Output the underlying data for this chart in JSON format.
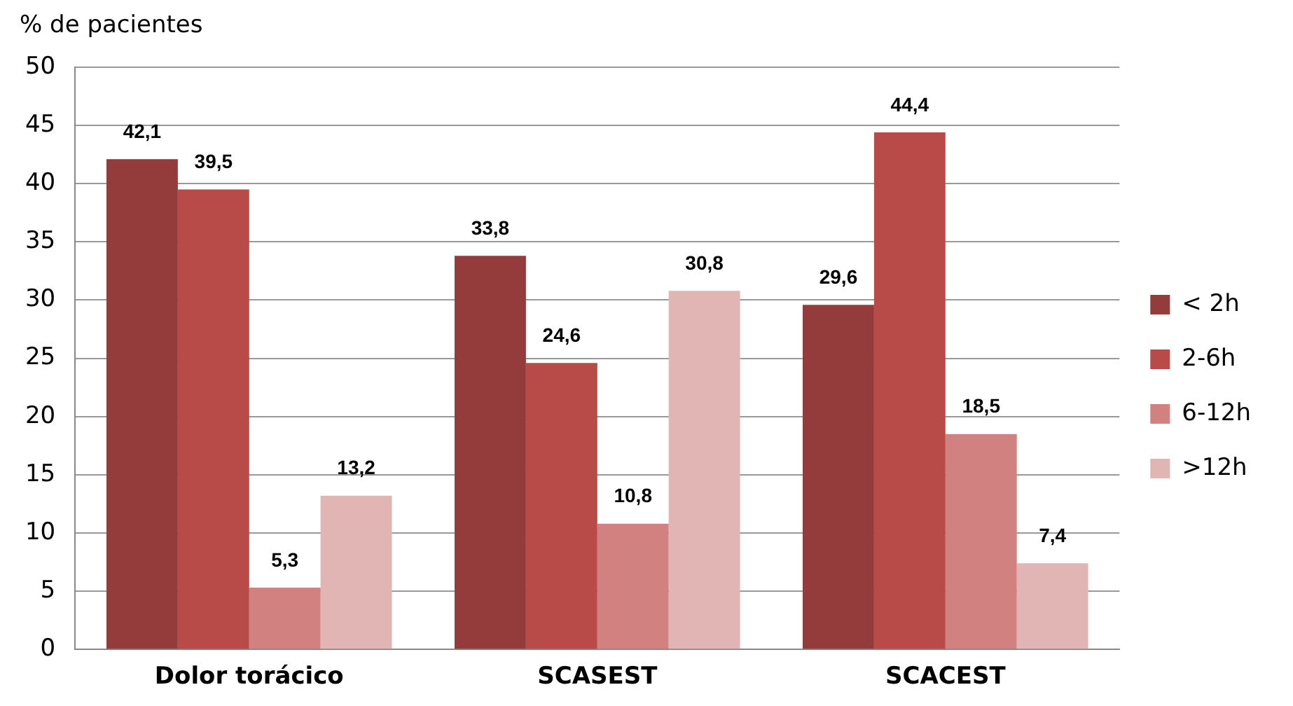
{
  "chart_data": {
    "type": "bar",
    "ylabel": "% de pacientes",
    "categories": [
      "Dolor torácico",
      "SCASEST",
      "SCACEST"
    ],
    "series": [
      {
        "name": "< 2h",
        "color": "#943b3b",
        "values": [
          42.1,
          33.8,
          29.6
        ],
        "value_labels": [
          "42,1",
          "33,8",
          "29,6"
        ]
      },
      {
        "name": "2-6h",
        "color": "#b84b48",
        "values": [
          39.5,
          24.6,
          44.4
        ],
        "value_labels": [
          "39,5",
          "24,6",
          "44,4"
        ]
      },
      {
        "name": "6-12h",
        "color": "#d08180",
        "values": [
          5.3,
          10.8,
          18.5
        ],
        "value_labels": [
          "5,3",
          "10,8",
          "18,5"
        ]
      },
      {
        "name": ">12h",
        "color": "#e2b5b5",
        "values": [
          13.2,
          30.8,
          7.4
        ],
        "value_labels": [
          "13,2",
          "30,8",
          "7,4"
        ]
      }
    ],
    "ylim": [
      0,
      50
    ],
    "yticks": [
      0,
      5,
      10,
      15,
      20,
      25,
      30,
      35,
      40,
      45,
      50
    ],
    "grid": "y",
    "legend": "right"
  }
}
